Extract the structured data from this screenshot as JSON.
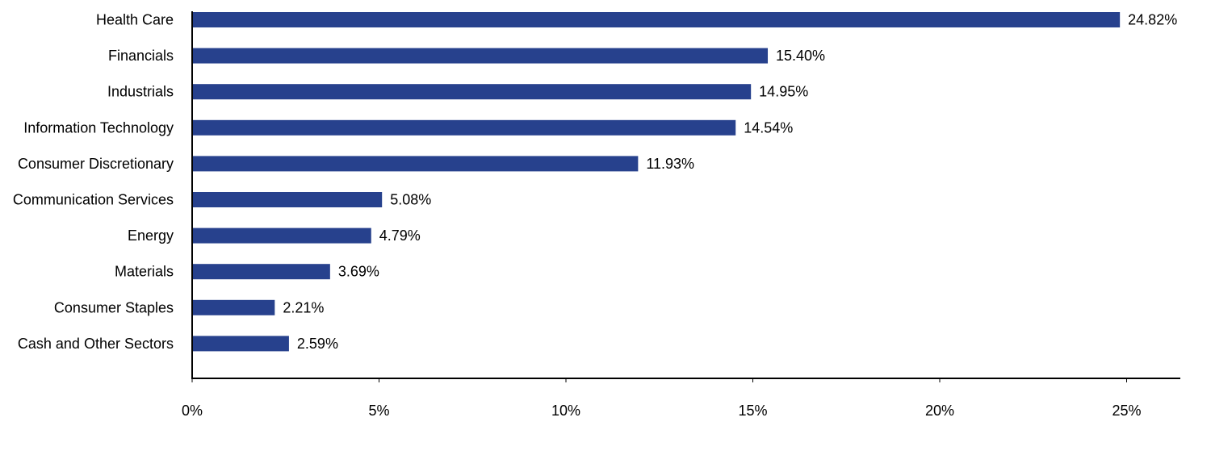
{
  "chart_data": {
    "type": "bar",
    "orientation": "horizontal",
    "categories": [
      "Health Care",
      "Financials",
      "Industrials",
      "Information Technology",
      "Consumer Discretionary",
      "Communication Services",
      "Energy",
      "Materials",
      "Consumer Staples",
      "Cash and Other Sectors"
    ],
    "values": [
      24.82,
      15.4,
      14.95,
      14.54,
      11.93,
      5.08,
      4.79,
      3.69,
      2.21,
      2.59
    ],
    "value_labels": [
      "24.82%",
      "15.40%",
      "14.95%",
      "14.54%",
      "11.93%",
      "5.08%",
      "4.79%",
      "3.69%",
      "2.21%",
      "2.59%"
    ],
    "xlim": [
      0,
      26.5
    ],
    "x_ticks": [
      0,
      5,
      10,
      15,
      20,
      25
    ],
    "x_tick_labels": [
      "0%",
      "5%",
      "10%",
      "15%",
      "20%",
      "25%"
    ],
    "title": "",
    "xlabel": "",
    "ylabel": "",
    "grid": false,
    "legend": "none",
    "bar_color": "#27418d",
    "axis_color": "#000000"
  }
}
